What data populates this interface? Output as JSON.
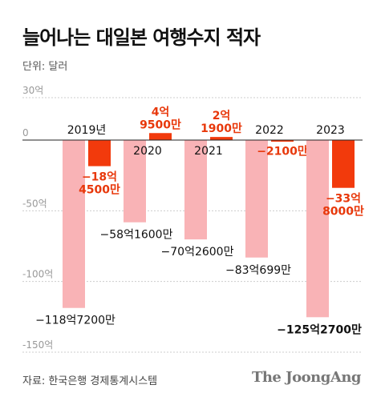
{
  "header": {
    "title": "늘어나는 대일본 여행수지 적자",
    "unit": "단위: 달러"
  },
  "footer": {
    "source": "자료: 한국은행 경제통계시스템",
    "logo": "The JoongAng"
  },
  "colors": {
    "outflow_bar": "#f9b3b6",
    "balance_bar": "#f23a0c",
    "balance_label": "#e8380b",
    "gridline": "#cccccc",
    "zero_line": "#222222",
    "tick_label": "#999999"
  },
  "chart_data": {
    "type": "bar",
    "title": "늘어나는 대일본 여행수지 적자",
    "ylabel": "단위: 달러",
    "ylim": [
      -150,
      30
    ],
    "yticks": [
      30,
      0,
      -50,
      -100,
      -150
    ],
    "ytick_labels": [
      "30억",
      "0",
      "-50억",
      "-100억",
      "-150억"
    ],
    "grid": true,
    "categories": [
      "2019년",
      "2020",
      "2021",
      "2022",
      "2023"
    ],
    "series": [
      {
        "values": [
          -118.72,
          -58.16,
          -70.26,
          -83.0699,
          -125.27
        ],
        "labels": [
          "−118억7200만",
          "−58억1600만",
          "−70억2600만",
          "−83억699만",
          "−125억2700만"
        ]
      },
      {
        "values": [
          -18.45,
          4.95,
          2.19,
          -0.21,
          -33.8
        ],
        "labels": [
          "−18억\n4500만",
          "4억\n9500만",
          "2억\n1900만",
          "−2100만",
          "−33억\n8000만"
        ]
      }
    ]
  }
}
